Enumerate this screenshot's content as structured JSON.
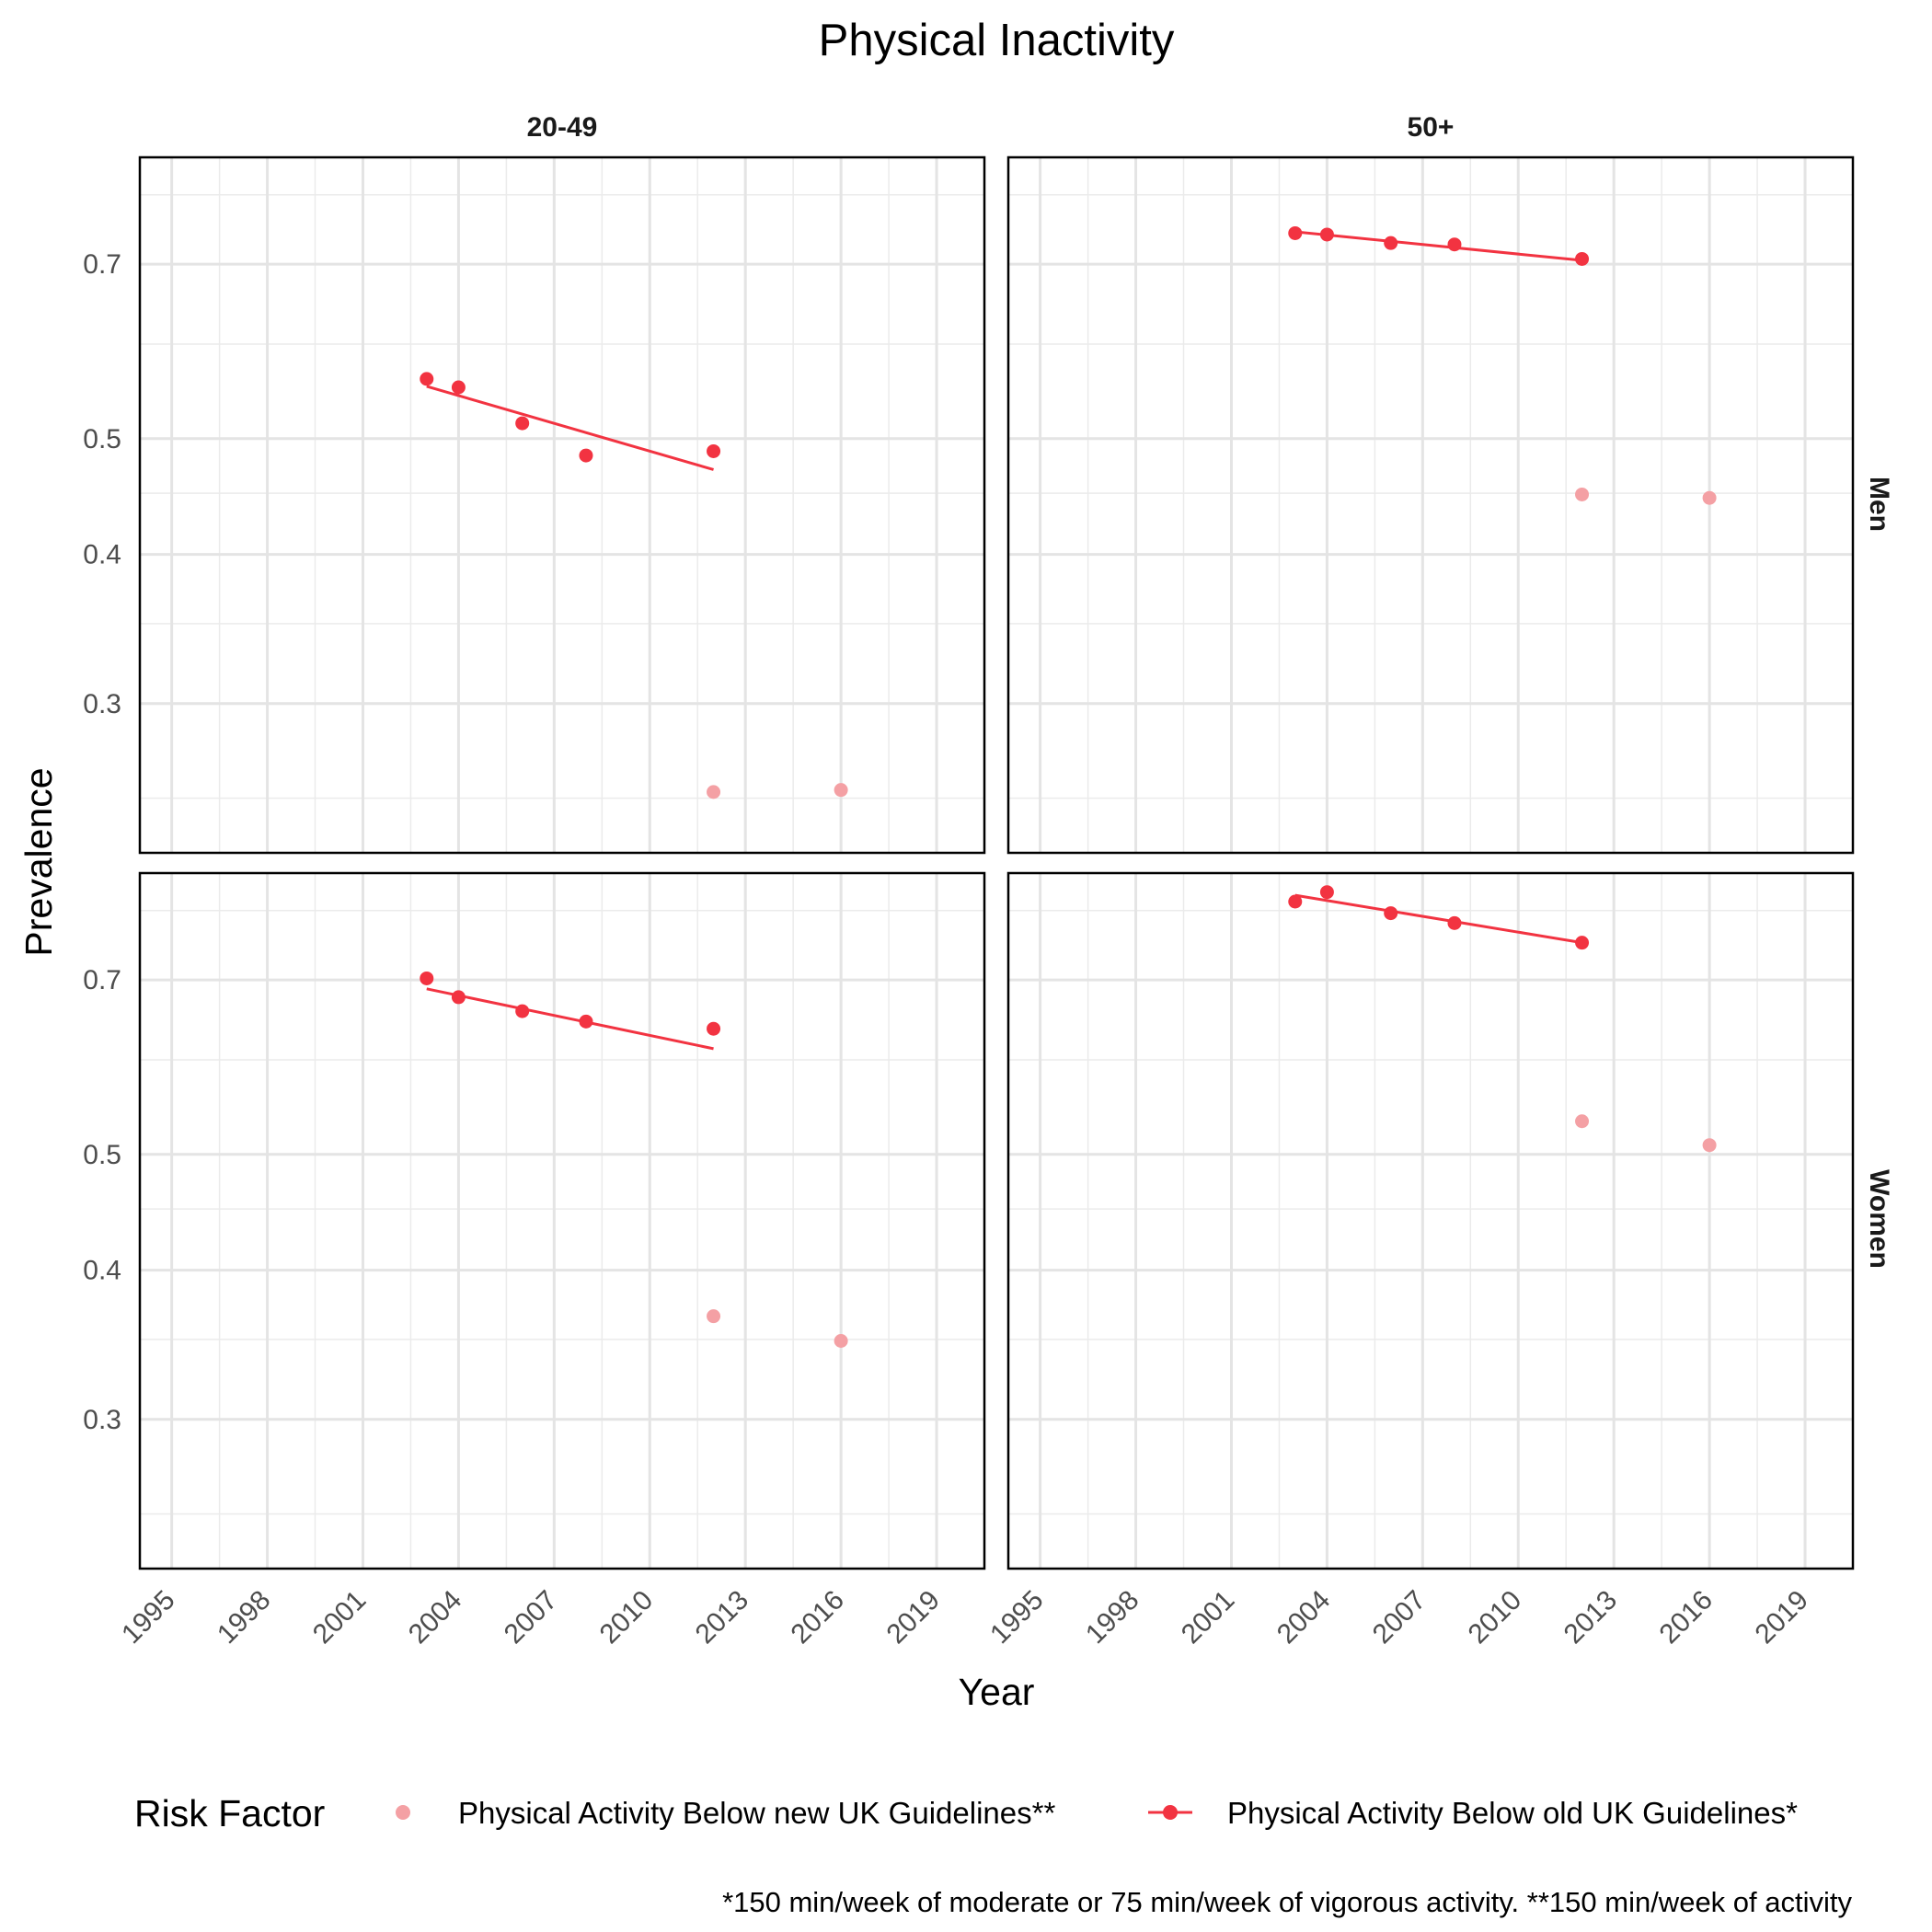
{
  "chart_data": {
    "type": "scatter",
    "title": "Physical Inactivity",
    "xlabel": "Year",
    "ylabel": "Prevalence",
    "y_scale": "log",
    "xlim": [
      1994,
      2020.5
    ],
    "ylim": [
      0.225,
      0.86
    ],
    "x_ticks": [
      "1995",
      "1998",
      "2001",
      "2004",
      "2007",
      "2010",
      "2013",
      "2016",
      "2019"
    ],
    "y_ticks": [
      "0.3",
      "0.4",
      "0.5",
      "0.7"
    ],
    "grid": true,
    "col_facets": [
      "20-49",
      "50+"
    ],
    "row_facets": [
      "Men",
      "Women"
    ],
    "legend": {
      "title": "Risk Factor",
      "position": "bottom",
      "entries": [
        {
          "label": "Physical Activity Below new UK Guidelines**",
          "color": "#f4a0a4",
          "style": "point"
        },
        {
          "label": "Physical Activity Below old UK Guidelines*",
          "color": "#f23341",
          "style": "point+line"
        }
      ]
    },
    "caption": "*150 min/week of moderate or 75 min/week of vigorous activity. **150 min/week of activity",
    "panels": [
      {
        "col": "20-49",
        "row": "Men",
        "old": {
          "x": [
            2003,
            2004,
            2006,
            2008,
            2012
          ],
          "y": [
            0.561,
            0.552,
            0.515,
            0.484,
            0.488
          ]
        },
        "old_fit": {
          "x": [
            2003,
            2012
          ],
          "y": [
            0.553,
            0.471
          ]
        },
        "new": {
          "x": [
            2012,
            2016
          ],
          "y": [
            0.253,
            0.254
          ]
        }
      },
      {
        "col": "50+",
        "row": "Men",
        "old": {
          "x": [
            2003,
            2004,
            2006,
            2008,
            2012
          ],
          "y": [
            0.743,
            0.741,
            0.729,
            0.727,
            0.707
          ]
        },
        "old_fit": {
          "x": [
            2003,
            2012
          ],
          "y": [
            0.745,
            0.705
          ]
        },
        "new": {
          "x": [
            2012,
            2016
          ],
          "y": [
            0.449,
            0.446
          ]
        }
      },
      {
        "col": "20-49",
        "row": "Women",
        "old": {
          "x": [
            2003,
            2004,
            2006,
            2008,
            2012
          ],
          "y": [
            0.702,
            0.677,
            0.659,
            0.646,
            0.637
          ]
        },
        "old_fit": {
          "x": [
            2003,
            2012
          ],
          "y": [
            0.688,
            0.613
          ]
        },
        "new": {
          "x": [
            2012,
            2016
          ],
          "y": [
            0.366,
            0.349
          ]
        }
      },
      {
        "col": "50+",
        "row": "Women",
        "old": {
          "x": [
            2003,
            2004,
            2006,
            2008,
            2012
          ],
          "y": [
            0.814,
            0.829,
            0.796,
            0.781,
            0.752
          ]
        },
        "old_fit": {
          "x": [
            2003,
            2012
          ],
          "y": [
            0.824,
            0.752
          ]
        },
        "new": {
          "x": [
            2012,
            2016
          ],
          "y": [
            0.533,
            0.509
          ]
        }
      }
    ]
  }
}
